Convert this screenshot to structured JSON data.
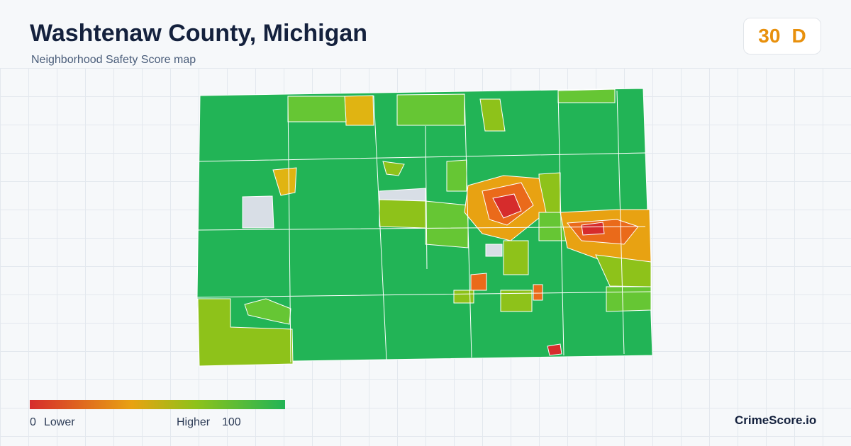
{
  "header": {
    "title": "Washtenaw County, Michigan",
    "subtitle": "Neighborhood Safety Score map"
  },
  "score": {
    "value": 30,
    "grade": "D"
  },
  "legend": {
    "min": 0,
    "min_label": "Lower",
    "max_label": "Higher",
    "max": 100
  },
  "brand": "CrimeScore.io"
}
